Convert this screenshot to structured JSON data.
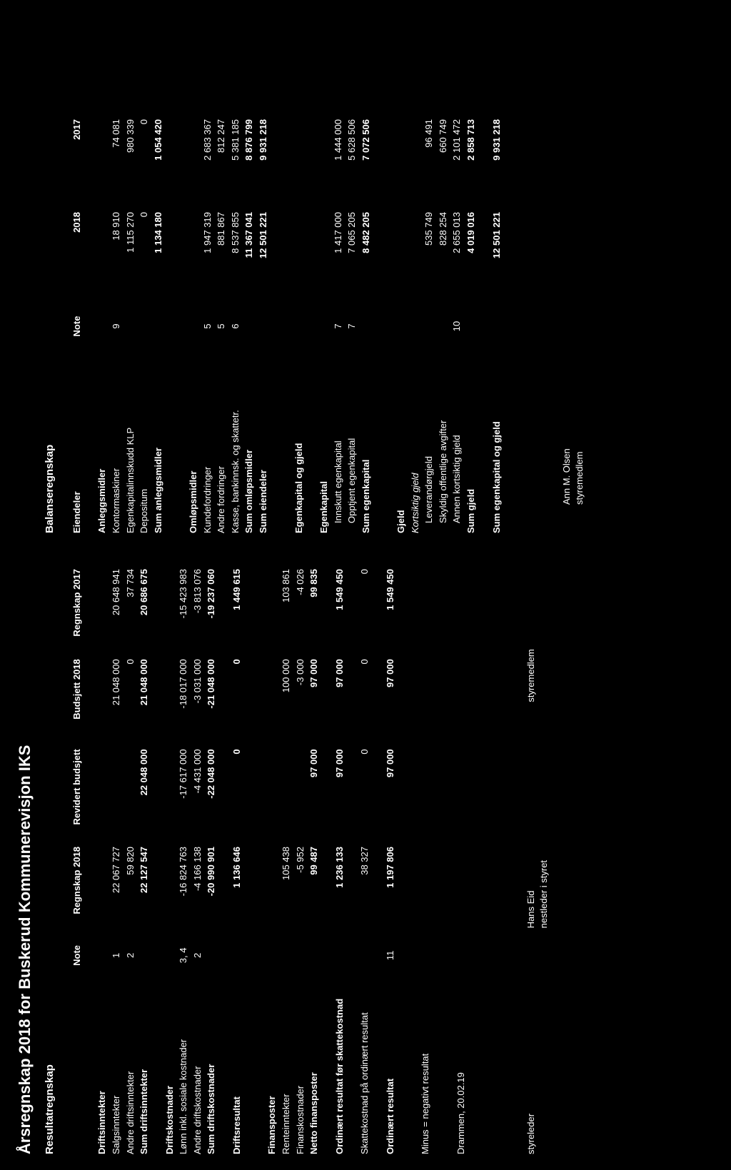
{
  "title": "Årsregnskap 2018 for Buskerud Kommunerevisjon IKS",
  "income": {
    "heading": "Resultatregnskap",
    "cols": [
      "Note",
      "Regnskap 2018",
      "Revidert budsjett",
      "Budsjett 2018",
      "Regnskap 2017"
    ],
    "rows": [
      {
        "type": "header",
        "label": "Driftsinntekter"
      },
      {
        "label": "Salgsinntekter",
        "note": "1",
        "v": [
          "22 067 727",
          "",
          "21 048 000",
          "20 648 941"
        ]
      },
      {
        "label": "Andre driftsinntekter",
        "note": "2",
        "v": [
          "59 820",
          "",
          "0",
          "37 734"
        ]
      },
      {
        "label": "Sum driftsinntekter",
        "bold": true,
        "v": [
          "22 127 547",
          "22 048 000",
          "21 048 000",
          "20 686 675"
        ]
      },
      {
        "type": "spacer"
      },
      {
        "type": "header",
        "label": "Driftskostnader"
      },
      {
        "label": "Lønn inkl. sosiale kostnader",
        "note": "3, 4",
        "v": [
          "-16 824 763",
          "-17 617 000",
          "-18 017 000",
          "-15 423 983"
        ]
      },
      {
        "label": "Andre driftskostnader",
        "note": "2",
        "v": [
          "-4 166 138",
          "-4 431 000",
          "-3 031 000",
          "-3 813 076"
        ]
      },
      {
        "label": "Sum driftskostnader",
        "bold": true,
        "v": [
          "-20 990 901",
          "-22 048 000",
          "-21 048 000",
          "-19 237 060"
        ]
      },
      {
        "type": "spacer"
      },
      {
        "label": "Driftsresultat",
        "bold": true,
        "v": [
          "1 136 646",
          "0",
          "0",
          "1 449 615"
        ]
      },
      {
        "type": "bigspacer"
      },
      {
        "type": "header",
        "label": "Finansposter"
      },
      {
        "label": "Renteinntekter",
        "v": [
          "105 438",
          "",
          "100 000",
          "103 861"
        ]
      },
      {
        "label": "Finanskostnader",
        "v": [
          "-5 952",
          "",
          "-3 000",
          "-4 026"
        ]
      },
      {
        "label": "Netto finansposter",
        "bold": true,
        "v": [
          "99 487",
          "97 000",
          "97 000",
          "99 835"
        ]
      },
      {
        "type": "spacer"
      },
      {
        "label": "Ordinært resultat før skattekostnad",
        "bold": true,
        "v": [
          "1 236 133",
          "97 000",
          "97 000",
          "1 549 450"
        ]
      },
      {
        "type": "spacer"
      },
      {
        "label": "Skattekostnad på ordinært resultat",
        "v": [
          "38 327",
          "0",
          "0",
          "0"
        ]
      },
      {
        "type": "spacer"
      },
      {
        "label": "Ordinært resultat",
        "bold": true,
        "note": "11",
        "v": [
          "1 197 806",
          "97 000",
          "97 000",
          "1 549 450"
        ]
      },
      {
        "type": "bigspacer"
      },
      {
        "label": "Minus = negativt resultat"
      },
      {
        "type": "bigspacer"
      },
      {
        "label": "Drammen, 20.02.19"
      }
    ],
    "sigs": [
      {
        "name": "",
        "role": "styreleder"
      },
      {
        "name": "Hans Eid",
        "role": "nestleder i styret"
      },
      {
        "name": "",
        "role": "styremedlem"
      }
    ]
  },
  "balance": {
    "heading": "Balanseregnskap",
    "cols_left": "Eiendeler",
    "cols": [
      "Note",
      "2018",
      "2017"
    ],
    "rows": [
      {
        "type": "header",
        "label": "Anleggsmidler"
      },
      {
        "label": "Kontormaskiner",
        "note": "9",
        "v": [
          "18 910",
          "74 081"
        ]
      },
      {
        "label": "Egenkapitalinnskudd KLP",
        "v": [
          "1 115 270",
          "980 339"
        ]
      },
      {
        "label": "Depositum",
        "v": [
          "0",
          "0"
        ]
      },
      {
        "label": "Sum anleggsmidler",
        "bold": true,
        "v": [
          "1 134 180",
          "1 054 420"
        ]
      },
      {
        "type": "bigspacer"
      },
      {
        "type": "header",
        "label": "Omløpsmidler"
      },
      {
        "label": "Kundefordringer",
        "note": "5",
        "v": [
          "1 947 319",
          "2 683 367"
        ]
      },
      {
        "label": "Andre fordringer",
        "note": "5",
        "v": [
          "881 867",
          "812 247"
        ]
      },
      {
        "label": "Kasse, bankinnsk. og skattetr.",
        "note": "6",
        "v": [
          "8 537 855",
          "5 381 185"
        ]
      },
      {
        "label": "Sum omløpsmidler",
        "bold": true,
        "v": [
          "11 367 041",
          "8 876 799"
        ]
      },
      {
        "label": "Sum eiendeler",
        "bold": true,
        "v": [
          "12 501 221",
          "9 931 218"
        ]
      },
      {
        "type": "bigspacer"
      },
      {
        "type": "header",
        "label": "Egenkapital og gjeld"
      },
      {
        "type": "spacer"
      },
      {
        "type": "header",
        "label": "Egenkapital"
      },
      {
        "label": "Innskutt egenkapital",
        "indent": true,
        "note": "7",
        "v": [
          "1 417 000",
          "1 444 000"
        ]
      },
      {
        "label": "Opptjent egenkapital",
        "indent": true,
        "note": "7",
        "v": [
          "7 065 205",
          "5 628 506"
        ]
      },
      {
        "label": "Sum egenkapital",
        "bold": true,
        "v": [
          "8 482 205",
          "7 072 506"
        ]
      },
      {
        "type": "bigspacer"
      },
      {
        "type": "header",
        "label": "Gjeld"
      },
      {
        "label": "Kortsiktig gjeld",
        "italic": true
      },
      {
        "label": "Leverandørgjeld",
        "indent": true,
        "v": [
          "535 749",
          "96 491"
        ]
      },
      {
        "label": "Skyldig offentlige avgifter",
        "indent": true,
        "v": [
          "828 254",
          "660 749"
        ]
      },
      {
        "label": "Annen kortsiktig gjeld",
        "indent": true,
        "note": "10",
        "v": [
          "2 655 013",
          "2 101 472"
        ]
      },
      {
        "label": "Sum gjeld",
        "bold": true,
        "v": [
          "4 019 016",
          "2 858 713"
        ]
      },
      {
        "type": "spacer"
      },
      {
        "label": "Sum egenkapital og gjeld",
        "bold": true,
        "v": [
          "12 501 221",
          "9 931 218"
        ]
      }
    ],
    "sig": {
      "name": "Ann M. Olsen",
      "role": "styremedlem"
    }
  }
}
